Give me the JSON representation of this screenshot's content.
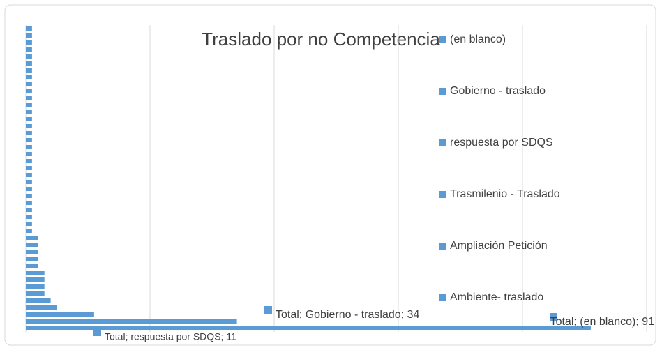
{
  "chart_data": {
    "type": "bar",
    "orientation": "horizontal",
    "title": "Traslado por no Competencia",
    "series_name": "Total",
    "categories": [
      null,
      null,
      null,
      null,
      null,
      null,
      null,
      null,
      null,
      null,
      null,
      null,
      null,
      null,
      null,
      null,
      null,
      null,
      null,
      null,
      null,
      null,
      null,
      null,
      null,
      null,
      null,
      null,
      null,
      null,
      null,
      null,
      null,
      null,
      null,
      null,
      null,
      null,
      "Ambiente- traslado",
      "Ampliación Petición",
      "Trasmilenio - Traslado",
      "respuesta por SDQS",
      "Gobierno - traslado",
      "(en blanco)"
    ],
    "values": [
      1,
      1,
      1,
      1,
      1,
      1,
      1,
      1,
      1,
      1,
      1,
      1,
      1,
      1,
      1,
      1,
      1,
      1,
      1,
      1,
      1,
      1,
      1,
      1,
      1,
      1,
      1,
      1,
      1,
      1,
      2,
      2,
      2,
      2,
      2,
      3,
      3,
      3,
      3,
      4,
      5,
      11,
      34,
      91
    ],
    "value_labels": [
      null,
      null,
      null,
      null,
      null,
      null,
      null,
      null,
      null,
      null,
      null,
      null,
      null,
      null,
      null,
      null,
      null,
      null,
      null,
      null,
      null,
      null,
      null,
      null,
      null,
      null,
      null,
      null,
      null,
      null,
      null,
      null,
      null,
      null,
      null,
      null,
      null,
      null,
      null,
      null,
      null,
      "Total; respuesta por SDQS; 11",
      "Total; Gobierno - traslado; 34",
      "Total; (en blanco); 91"
    ],
    "color": "#5b9bd5",
    "xlim": [
      0,
      100
    ],
    "xticks": [
      0,
      20,
      40,
      60,
      80,
      100
    ],
    "grid": true,
    "legend": "right"
  }
}
